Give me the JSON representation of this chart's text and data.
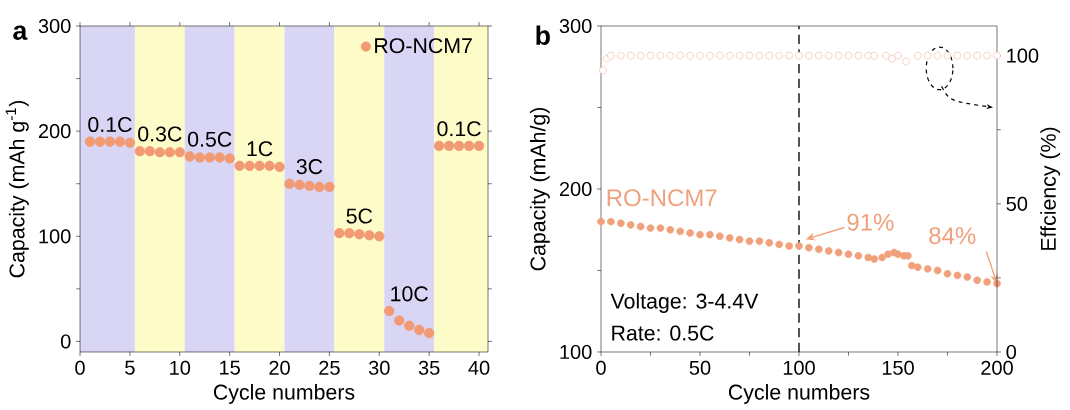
{
  "chart_data": [
    {
      "type": "scatter",
      "title": "a",
      "xlabel": "Cycle numbers",
      "ylabel": "Capacity (mAh g$^{-1}$)",
      "xlim": [
        0,
        40.9
      ],
      "ylim": [
        -10,
        300
      ],
      "xticks": [
        0,
        5,
        10,
        15,
        20,
        25,
        30,
        35,
        40
      ],
      "yticks": [
        0,
        100,
        200,
        300
      ],
      "legend": "top right",
      "marker": "circle",
      "series": [
        {
          "name": "RO-NCM7",
          "color": "#f29a73",
          "x": [
            1,
            2,
            3,
            4,
            5,
            6,
            7,
            8,
            9,
            10,
            11,
            12,
            13,
            14,
            15,
            16,
            17,
            18,
            19,
            20,
            21,
            22,
            23,
            24,
            25,
            26,
            27,
            28,
            29,
            30,
            31,
            32,
            33,
            34,
            35,
            36,
            37,
            38,
            39,
            40
          ],
          "values": [
            190,
            190,
            190,
            190,
            189,
            181,
            181,
            180,
            180,
            180,
            176,
            175,
            175,
            175,
            174,
            167,
            167,
            167,
            167,
            166,
            150,
            149,
            148,
            147,
            147,
            103,
            103,
            102,
            101,
            100,
            29,
            20,
            15,
            11,
            8,
            186,
            186,
            186,
            186,
            186
          ]
        }
      ],
      "bands": [
        {
          "axis": "x",
          "from": 0,
          "to": 5.5,
          "label": "0.1C",
          "color": "#d9d5f5"
        },
        {
          "axis": "x",
          "from": 5.5,
          "to": 10.5,
          "label": "0.3C",
          "color": "#fdfcc8"
        },
        {
          "axis": "x",
          "from": 10.5,
          "to": 15.5,
          "label": "0.5C",
          "color": "#d9d5f5"
        },
        {
          "axis": "x",
          "from": 15.5,
          "to": 20.5,
          "label": "1C",
          "color": "#fdfcc8"
        },
        {
          "axis": "x",
          "from": 20.5,
          "to": 25.5,
          "label": "3C",
          "color": "#d9d5f5"
        },
        {
          "axis": "x",
          "from": 25.5,
          "to": 30.5,
          "label": "5C",
          "color": "#fdfcc8"
        },
        {
          "axis": "x",
          "from": 30.5,
          "to": 35.5,
          "label": "10C",
          "color": "#d9d5f5"
        },
        {
          "axis": "x",
          "from": 35.5,
          "to": 40.9,
          "label": "0.1C",
          "color": "#fdfcc8"
        }
      ]
    },
    {
      "type": "scatter",
      "title": "b",
      "xlabel": "Cycle numbers",
      "ylabel": "Capacity (mAh/g)",
      "y2label": "Effciency (%)",
      "xlim": [
        0,
        200
      ],
      "ylim": [
        100,
        300
      ],
      "y2lim": [
        0,
        110
      ],
      "xticks": [
        0,
        50,
        100,
        150,
        200
      ],
      "yticks": [
        100,
        200,
        300
      ],
      "y2ticks": [
        0,
        50,
        100
      ],
      "marker": "circle",
      "series": [
        {
          "name": "RO-NCM7",
          "color": "#f0a07a",
          "x": [
            0,
            5,
            10,
            15,
            20,
            25,
            30,
            35,
            40,
            45,
            50,
            55,
            60,
            65,
            70,
            75,
            80,
            85,
            90,
            95,
            100,
            105,
            110,
            115,
            120,
            125,
            130,
            135,
            138,
            142,
            145,
            148,
            150,
            153,
            155,
            157,
            160,
            165,
            170,
            175,
            180,
            185,
            190,
            195,
            200
          ],
          "values": [
            180,
            180,
            179,
            178,
            177,
            176,
            176,
            175,
            174,
            173,
            172,
            172,
            171,
            170,
            169,
            168,
            168,
            167,
            166,
            165,
            165,
            164,
            163,
            162,
            161,
            160,
            159,
            158,
            157,
            158,
            160,
            161,
            160,
            159,
            159,
            153,
            152,
            151,
            150,
            148,
            147,
            146,
            144,
            143,
            142
          ]
        },
        {
          "color": "#f4b8a0",
          "axis": "y2",
          "x": [
            1,
            3,
            5,
            10,
            15,
            20,
            25,
            30,
            35,
            40,
            45,
            50,
            55,
            60,
            65,
            70,
            75,
            80,
            85,
            90,
            95,
            100,
            105,
            110,
            115,
            120,
            125,
            130,
            135,
            138,
            144,
            147,
            150,
            154,
            160,
            165,
            170,
            175,
            180,
            185,
            190,
            195,
            200
          ],
          "values": [
            95,
            99,
            100,
            100,
            100,
            100,
            100,
            100,
            100,
            100,
            100,
            100,
            100,
            100,
            100,
            100,
            100,
            100,
            100,
            100,
            100,
            100,
            100,
            100,
            100,
            100,
            100,
            100,
            100,
            100,
            100,
            99,
            100,
            98,
            100,
            100,
            100,
            100,
            100,
            100,
            100,
            100,
            100
          ]
        }
      ],
      "ref_lines": [
        {
          "axis": "x",
          "value": 100,
          "color": "#000000",
          "line_style": "dashed"
        }
      ],
      "annotations": [
        {
          "text": "91%",
          "x": 100,
          "y": 165
        },
        {
          "text": "84%",
          "x": 200,
          "y": 142
        },
        "Voltage: 3-4.4V",
        "Rate: 0.5C"
      ]
    }
  ]
}
